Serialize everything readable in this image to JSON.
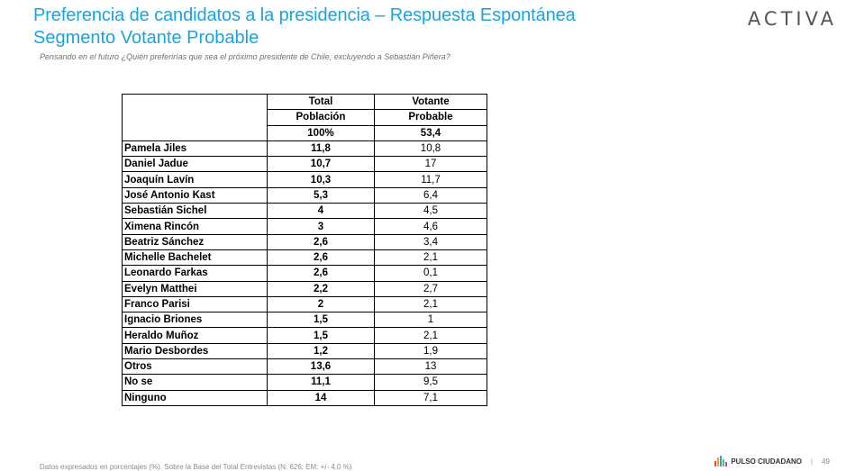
{
  "header": {
    "title": "Preferencia de candidatos a la presidencia – Respuesta Espontánea",
    "subtitle": "Segmento Votante Probable",
    "question": "Pensando en el futuro ¿Quién preferirías que sea el próximo presidente de Chile, excluyendo a Sebastián Piñera?",
    "logo": "ACTIVA"
  },
  "table": {
    "col1_line1": "Total",
    "col1_line2": "Población",
    "col2_line1": "Votante",
    "col2_line2": "Probable",
    "base_col1": "100%",
    "base_col2": "53,4",
    "rows": [
      {
        "name": "Pamela Jiles",
        "c1": "11,8",
        "c2": "10,8"
      },
      {
        "name": "Daniel Jadue",
        "c1": "10,7",
        "c2": "17"
      },
      {
        "name": "Joaquín Lavín",
        "c1": "10,3",
        "c2": "11,7"
      },
      {
        "name": "José Antonio Kast",
        "c1": "5,3",
        "c2": "6,4"
      },
      {
        "name": "Sebastián Sichel",
        "c1": "4",
        "c2": "4,5"
      },
      {
        "name": "Ximena Rincón",
        "c1": "3",
        "c2": "4,6"
      },
      {
        "name": "Beatriz Sánchez",
        "c1": "2,6",
        "c2": "3,4"
      },
      {
        "name": "Michelle Bachelet",
        "c1": "2,6",
        "c2": "2,1"
      },
      {
        "name": "Leonardo Farkas",
        "c1": "2,6",
        "c2": "0,1"
      },
      {
        "name": "Evelyn Matthei",
        "c1": "2,2",
        "c2": "2,7"
      },
      {
        "name": "Franco Parisi",
        "c1": "2",
        "c2": "2,1"
      },
      {
        "name": "Ignacio Briones",
        "c1": "1,5",
        "c2": "1"
      },
      {
        "name": "Heraldo Muñoz",
        "c1": "1,5",
        "c2": "2,1"
      },
      {
        "name": "Mario Desbordes",
        "c1": "1,2",
        "c2": "1,9"
      },
      {
        "name": "Otros",
        "c1": "13,6",
        "c2": "13"
      },
      {
        "name": "No se",
        "c1": "11,1",
        "c2": "9,5"
      },
      {
        "name": "Ninguno",
        "c1": "14",
        "c2": "7,1"
      }
    ]
  },
  "footer": {
    "note": "Datos expresados en porcentajes (%). Sobre la Base del Total Entrevistas (N: 626; EM: +/- 4,0 %)",
    "brand": "PULSO CIUDADANO",
    "page_number": "49",
    "bar_colors": [
      "#e84c3d",
      "#f5a623",
      "#2e9fd9",
      "#7ab648",
      "#9b59b6"
    ]
  }
}
